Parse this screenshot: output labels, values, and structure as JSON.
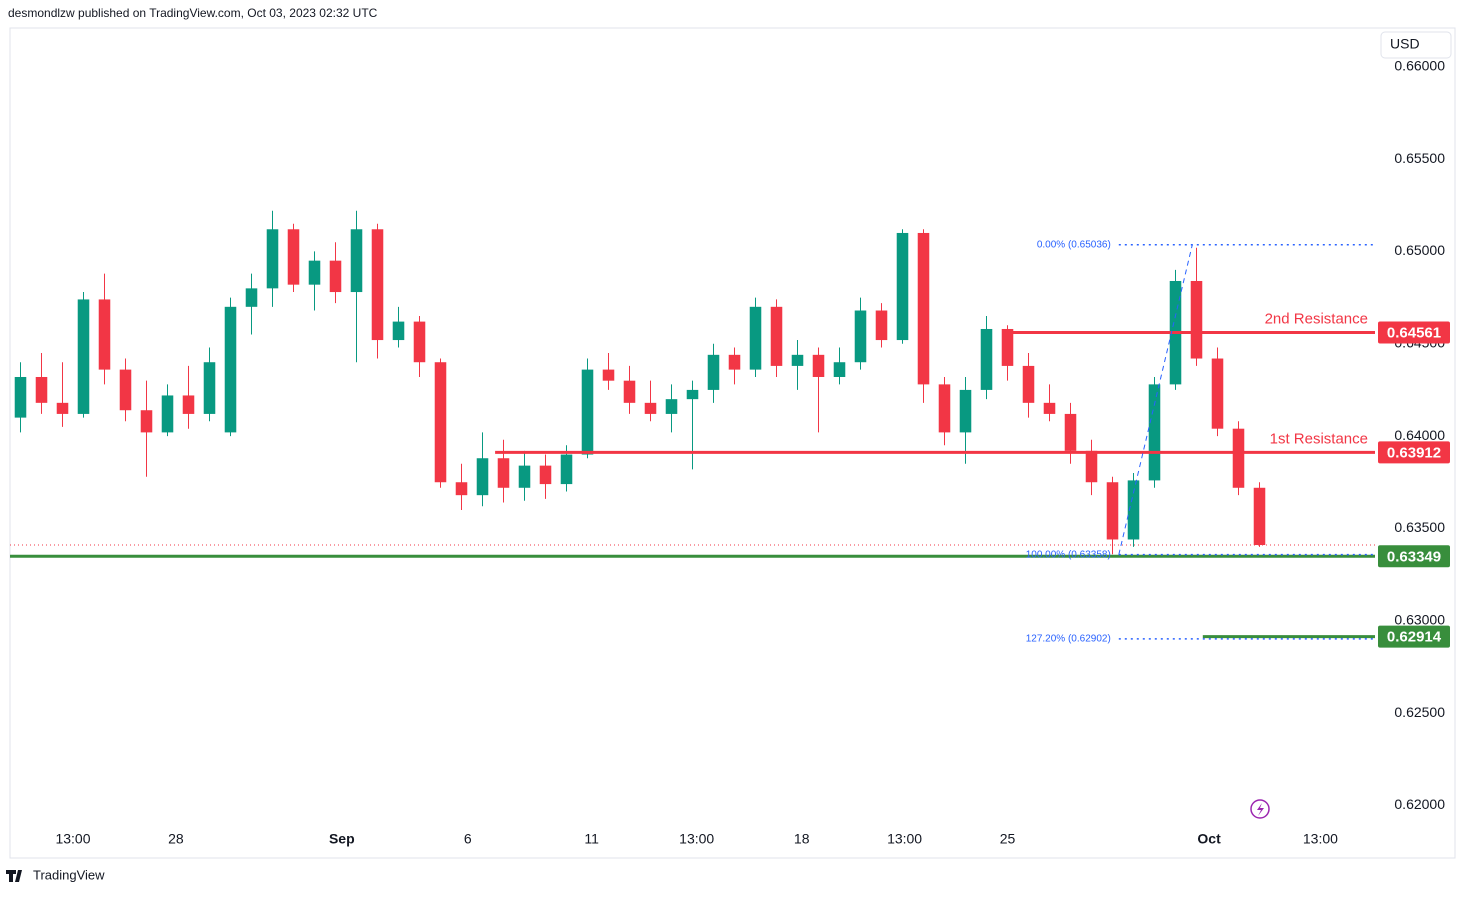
{
  "header": {
    "text": "desmondlzw published on TradingView.com, Oct 03, 2023 02:32 UTC"
  },
  "footer": {
    "brand": "TradingView"
  },
  "chart_data": {
    "type": "candlestick",
    "currency": "USD",
    "up_color": "#089981",
    "down_color": "#f23645",
    "x": [
      0,
      1,
      2,
      3,
      4,
      5,
      6,
      7,
      8,
      9,
      10,
      11,
      12,
      13,
      14,
      15,
      16,
      17,
      18,
      19,
      20,
      21,
      22,
      23,
      24,
      25,
      26,
      27,
      28,
      29,
      30,
      31,
      32,
      33,
      34,
      35,
      36,
      37,
      38,
      39,
      40,
      41,
      42,
      43,
      44,
      45,
      46,
      47,
      48,
      49,
      50,
      51,
      52,
      53,
      54,
      55,
      56,
      57,
      58,
      59
    ],
    "open": [
      0.641,
      0.6432,
      0.6418,
      0.6412,
      0.6474,
      0.6436,
      0.6414,
      0.6402,
      0.6422,
      0.6412,
      0.6402,
      0.647,
      0.648,
      0.6512,
      0.6482,
      0.6495,
      0.6478,
      0.6512,
      0.6452,
      0.6462,
      0.644,
      0.6375,
      0.6368,
      0.6388,
      0.6372,
      0.6384,
      0.6374,
      0.639,
      0.6436,
      0.643,
      0.6418,
      0.6412,
      0.642,
      0.6425,
      0.6444,
      0.6436,
      0.647,
      0.6438,
      0.6444,
      0.6432,
      0.644,
      0.6468,
      0.6452,
      0.651,
      0.6428,
      0.6402,
      0.6425,
      0.6458,
      0.6438,
      0.6418,
      0.6412,
      0.6392,
      0.6375,
      0.6344,
      0.6376,
      0.6428,
      0.6484,
      0.6442,
      0.6404,
      0.6372
    ],
    "high": [
      0.644,
      0.6445,
      0.644,
      0.6478,
      0.6488,
      0.6442,
      0.643,
      0.6428,
      0.6438,
      0.6448,
      0.6475,
      0.6488,
      0.6522,
      0.6515,
      0.65,
      0.6505,
      0.6522,
      0.6515,
      0.647,
      0.6465,
      0.6442,
      0.6385,
      0.6402,
      0.6398,
      0.6392,
      0.639,
      0.6395,
      0.6442,
      0.6445,
      0.6438,
      0.643,
      0.6428,
      0.643,
      0.645,
      0.6448,
      0.6475,
      0.6474,
      0.6452,
      0.6448,
      0.6448,
      0.6475,
      0.6472,
      0.6512,
      0.6512,
      0.6432,
      0.6432,
      0.6465,
      0.646,
      0.6445,
      0.6428,
      0.6418,
      0.6398,
      0.6378,
      0.638,
      0.6432,
      0.649,
      0.6502,
      0.6448,
      0.6408,
      0.6375
    ],
    "low": [
      0.6402,
      0.6412,
      0.6405,
      0.641,
      0.6428,
      0.6408,
      0.6378,
      0.64,
      0.6404,
      0.6408,
      0.64,
      0.6455,
      0.647,
      0.6478,
      0.6468,
      0.6472,
      0.644,
      0.6442,
      0.6448,
      0.6432,
      0.6372,
      0.636,
      0.6362,
      0.6364,
      0.6365,
      0.6366,
      0.637,
      0.6388,
      0.6425,
      0.6412,
      0.6408,
      0.6402,
      0.6382,
      0.6418,
      0.6428,
      0.6432,
      0.6432,
      0.6425,
      0.6402,
      0.6428,
      0.6436,
      0.6448,
      0.645,
      0.6418,
      0.6395,
      0.6385,
      0.642,
      0.643,
      0.641,
      0.6408,
      0.6385,
      0.6368,
      0.6336,
      0.634,
      0.6372,
      0.6425,
      0.6438,
      0.64,
      0.6368,
      0.634
    ],
    "close": [
      0.6432,
      0.6418,
      0.6412,
      0.6474,
      0.6436,
      0.6414,
      0.6402,
      0.6422,
      0.6412,
      0.644,
      0.647,
      0.648,
      0.6512,
      0.6482,
      0.6495,
      0.6478,
      0.6512,
      0.6452,
      0.6462,
      0.644,
      0.6375,
      0.6368,
      0.6388,
      0.6372,
      0.6384,
      0.6374,
      0.639,
      0.6436,
      0.643,
      0.6418,
      0.6412,
      0.642,
      0.6425,
      0.6444,
      0.6436,
      0.647,
      0.6438,
      0.6444,
      0.6432,
      0.644,
      0.6468,
      0.6452,
      0.651,
      0.6428,
      0.6402,
      0.6425,
      0.6458,
      0.6438,
      0.6418,
      0.6412,
      0.6392,
      0.6375,
      0.6344,
      0.6376,
      0.6428,
      0.6484,
      0.6442,
      0.6404,
      0.6372,
      0.6341
    ],
    "xlim": [
      -0.5,
      64.5
    ],
    "xticks": [
      {
        "value": 2.5,
        "label": "13:00"
      },
      {
        "value": 7.4,
        "label": "28"
      },
      {
        "value": 15.3,
        "label": "Sep"
      },
      {
        "value": 21.3,
        "label": "6"
      },
      {
        "value": 27.2,
        "label": "11"
      },
      {
        "value": 32.2,
        "label": "13:00"
      },
      {
        "value": 37.2,
        "label": "18"
      },
      {
        "value": 42.1,
        "label": "13:00"
      },
      {
        "value": 47.0,
        "label": "25"
      },
      {
        "value": 56.6,
        "label": "Oct"
      },
      {
        "value": 61.9,
        "label": "13:00"
      }
    ],
    "ylim": [
      0.6191,
      0.6621
    ],
    "yticks": [
      {
        "value": 0.62,
        "label": "0.62000"
      },
      {
        "value": 0.625,
        "label": "0.62500"
      },
      {
        "value": 0.63,
        "label": "0.63000"
      },
      {
        "value": 0.635,
        "label": "0.63500"
      },
      {
        "value": 0.64,
        "label": "0.64000"
      },
      {
        "value": 0.645,
        "label": "0.64500"
      },
      {
        "value": 0.65,
        "label": "0.65000"
      },
      {
        "value": 0.655,
        "label": "0.65500"
      },
      {
        "value": 0.66,
        "label": "0.66000"
      }
    ],
    "levels": [
      {
        "name": "2nd Resistance",
        "value": 0.64561,
        "color": "#f23645"
      },
      {
        "name": "1st Resistance",
        "value": 0.63912,
        "color": "#f23645"
      },
      {
        "value": 0.63349,
        "color": "#388e3c"
      },
      {
        "value": 0.62914,
        "color": "#388e3c"
      }
    ],
    "fib": [
      {
        "label": "0.00% (0.65036)",
        "value": 0.65036
      },
      {
        "label": "100.00% (0.63358)",
        "value": 0.63358
      },
      {
        "label": "127.20% (0.62902)",
        "value": 0.62902
      }
    ],
    "fib_color": "#2962ff"
  }
}
